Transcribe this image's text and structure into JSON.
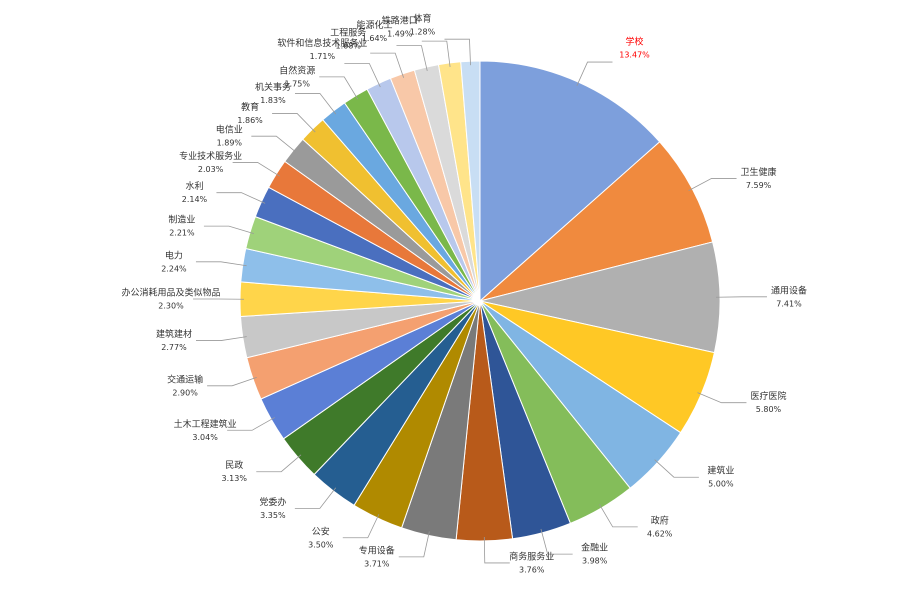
{
  "chart_data": {
    "type": "pie",
    "categories": [
      "学校",
      "卫生健康",
      "通用设备",
      "医疗医院",
      "建筑业",
      "政府",
      "金融业",
      "商务服务业",
      "专用设备",
      "公安",
      "党委办",
      "民政",
      "土木工程建筑业",
      "交通运输",
      "建筑建材",
      "办公消耗用品及类似物品",
      "电力",
      "制造业",
      "水利",
      "专业技术服务业",
      "电信业",
      "教育",
      "机关事务",
      "自然资源",
      "软件和信息技术服务业",
      "工程服务",
      "能源化工",
      "铁路港口",
      "体育"
    ],
    "values": [
      13.47,
      7.59,
      7.41,
      5.8,
      5.0,
      4.62,
      3.98,
      3.76,
      3.71,
      3.5,
      3.35,
      3.13,
      3.04,
      2.9,
      2.77,
      2.3,
      2.24,
      2.21,
      2.14,
      2.03,
      1.89,
      1.86,
      1.83,
      1.75,
      1.71,
      1.68,
      1.64,
      1.49,
      1.28
    ],
    "value_labels": [
      "13.47%",
      "7.59%",
      "7.41%",
      "5.80%",
      "5.00%",
      "4.62%",
      "3.98%",
      "3.76%",
      "3.71%",
      "3.50%",
      "3.35%",
      "3.13%",
      "3.04%",
      "2.90%",
      "2.77%",
      "2.30%",
      "2.24%",
      "2.21%",
      "2.14%",
      "2.03%",
      "1.89%",
      "1.86%",
      "1.83%",
      "1.75%",
      "1.71%",
      "1.68%",
      "1.64%",
      "1.49%",
      "1.28%"
    ],
    "colors": [
      "#7d9fdc",
      "#f08a3e",
      "#b0b0b0",
      "#ffc825",
      "#80b5e3",
      "#84bd5a",
      "#2f5597",
      "#b85a1a",
      "#7a7a7a",
      "#b08a00",
      "#255e91",
      "#3f7a2a",
      "#5b7fd6",
      "#f4a070",
      "#c8c8c8",
      "#ffd54a",
      "#8ebfea",
      "#9fd27a",
      "#4a6fbf",
      "#e8783a",
      "#9a9a9a",
      "#f0c030",
      "#6aa8e0",
      "#7ab84a",
      "#b8c8ec",
      "#f8c8a8",
      "#dadada",
      "#ffe48a",
      "#c8def4"
    ],
    "label_colors": [
      "#ff0000",
      "#333333",
      "#333333",
      "#333333",
      "#333333",
      "#333333",
      "#333333",
      "#333333",
      "#333333",
      "#333333",
      "#333333",
      "#333333",
      "#333333",
      "#333333",
      "#333333",
      "#333333",
      "#333333",
      "#333333",
      "#333333",
      "#333333",
      "#333333",
      "#333333",
      "#333333",
      "#333333",
      "#333333",
      "#333333",
      "#333333",
      "#333333",
      "#333333"
    ]
  }
}
